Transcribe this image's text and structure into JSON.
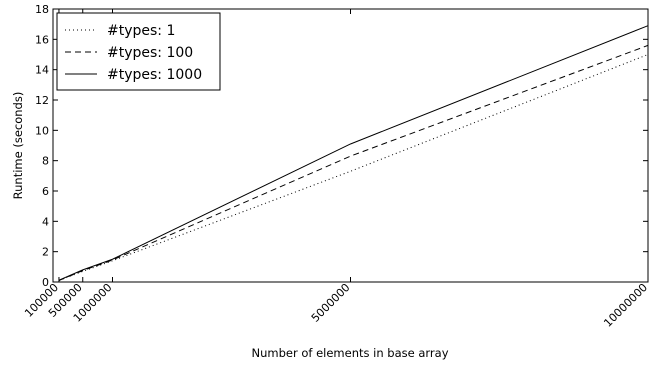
{
  "chart_data": {
    "type": "line",
    "title": "",
    "xlabel": "Number of elements in base array",
    "ylabel": "Runtime (seconds)",
    "xlim": [
      0,
      10000000
    ],
    "ylim": [
      0,
      18
    ],
    "x_ticks": [
      100000,
      500000,
      1000000,
      5000000,
      10000000
    ],
    "x_tick_labels": [
      "100000",
      "500000",
      "1000000",
      "5000000",
      "10000000"
    ],
    "y_ticks": [
      0,
      2,
      4,
      6,
      8,
      10,
      12,
      14,
      16,
      18
    ],
    "y_tick_labels": [
      "0",
      "2",
      "4",
      "6",
      "8",
      "10",
      "12",
      "14",
      "16",
      "18"
    ],
    "grid": false,
    "legend_position": "top-left",
    "x": [
      100000,
      500000,
      1000000,
      5000000,
      10000000
    ],
    "series": [
      {
        "name": "#types: 1",
        "values": [
          0.1,
          0.7,
          1.4,
          7.3,
          15.0
        ],
        "style": "dotted",
        "color": "#000000"
      },
      {
        "name": "#types: 100",
        "values": [
          0.1,
          0.75,
          1.45,
          8.3,
          15.6
        ],
        "style": "dashed",
        "color": "#000000"
      },
      {
        "name": "#types: 1000",
        "values": [
          0.12,
          0.8,
          1.5,
          9.1,
          16.9
        ],
        "style": "solid",
        "color": "#000000"
      }
    ]
  }
}
